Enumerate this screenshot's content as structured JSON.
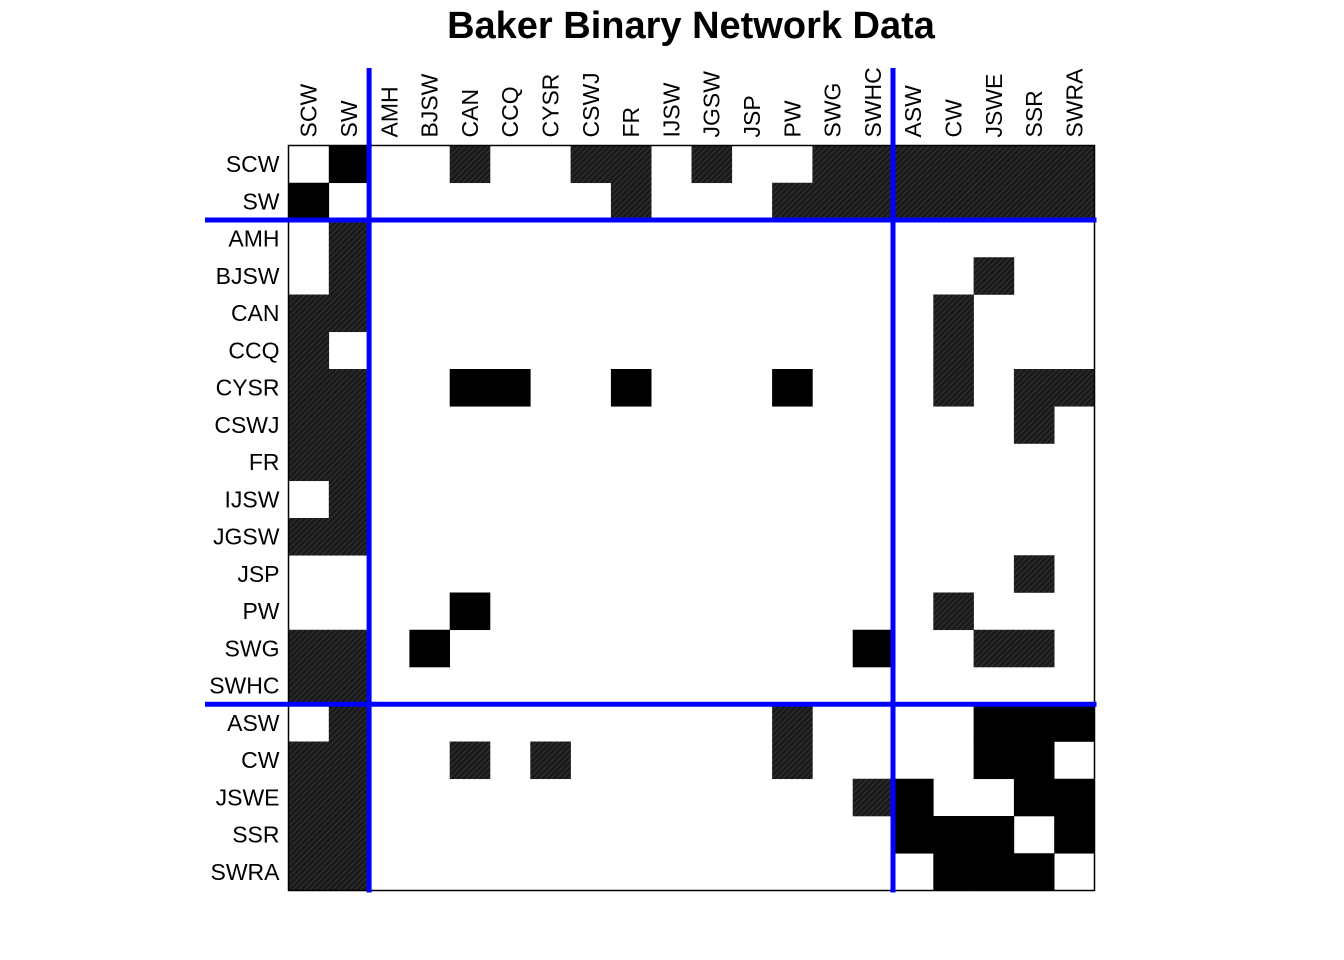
{
  "chart_data": {
    "type": "heatmap",
    "title": "Baker Binary Network Data",
    "labels": [
      "SCW",
      "SW",
      "AMH",
      "BJSW",
      "CAN",
      "CCQ",
      "CYSR",
      "CSWJ",
      "FR",
      "IJSW",
      "JGSW",
      "JSP",
      "PW",
      "SWG",
      "SWHC",
      "ASW",
      "CW",
      "JSWE",
      "SSR",
      "SWRA"
    ],
    "blocks": [
      {
        "start": 0,
        "end": 1
      },
      {
        "start": 2,
        "end": 14
      },
      {
        "start": 15,
        "end": 19
      }
    ],
    "divider_color": "#0000ff",
    "cell_color_solid": "#000000",
    "cell_color_hatched": "#1a1a1a",
    "matrix": [
      [
        0,
        1,
        0,
        0,
        1,
        0,
        0,
        1,
        1,
        0,
        1,
        0,
        0,
        1,
        1,
        1,
        1,
        1,
        1,
        1
      ],
      [
        1,
        0,
        0,
        0,
        0,
        0,
        0,
        0,
        1,
        0,
        0,
        0,
        1,
        1,
        1,
        1,
        1,
        1,
        1,
        1
      ],
      [
        0,
        1,
        0,
        0,
        0,
        0,
        0,
        0,
        0,
        0,
        0,
        0,
        0,
        0,
        0,
        0,
        0,
        0,
        0,
        0
      ],
      [
        0,
        1,
        0,
        0,
        0,
        0,
        0,
        0,
        0,
        0,
        0,
        0,
        0,
        0,
        0,
        0,
        0,
        1,
        0,
        0
      ],
      [
        1,
        1,
        0,
        0,
        0,
        0,
        0,
        0,
        0,
        0,
        0,
        0,
        0,
        0,
        0,
        0,
        1,
        0,
        0,
        0
      ],
      [
        1,
        0,
        0,
        0,
        0,
        0,
        0,
        0,
        0,
        0,
        0,
        0,
        0,
        0,
        0,
        0,
        1,
        0,
        0,
        0
      ],
      [
        1,
        1,
        0,
        0,
        1,
        1,
        0,
        0,
        1,
        0,
        0,
        0,
        1,
        0,
        0,
        0,
        1,
        0,
        1,
        1
      ],
      [
        1,
        1,
        0,
        0,
        0,
        0,
        0,
        0,
        0,
        0,
        0,
        0,
        0,
        0,
        0,
        0,
        0,
        0,
        1,
        0
      ],
      [
        1,
        1,
        0,
        0,
        0,
        0,
        0,
        0,
        0,
        0,
        0,
        0,
        0,
        0,
        0,
        0,
        0,
        0,
        0,
        0
      ],
      [
        0,
        1,
        0,
        0,
        0,
        0,
        0,
        0,
        0,
        0,
        0,
        0,
        0,
        0,
        0,
        0,
        0,
        0,
        0,
        0
      ],
      [
        1,
        1,
        0,
        0,
        0,
        0,
        0,
        0,
        0,
        0,
        0,
        0,
        0,
        0,
        0,
        0,
        0,
        0,
        0,
        0
      ],
      [
        0,
        0,
        0,
        0,
        0,
        0,
        0,
        0,
        0,
        0,
        0,
        0,
        0,
        0,
        0,
        0,
        0,
        0,
        1,
        0
      ],
      [
        0,
        0,
        0,
        0,
        1,
        0,
        0,
        0,
        0,
        0,
        0,
        0,
        0,
        0,
        0,
        0,
        1,
        0,
        0,
        0
      ],
      [
        1,
        1,
        0,
        1,
        0,
        0,
        0,
        0,
        0,
        0,
        0,
        0,
        0,
        0,
        1,
        0,
        0,
        1,
        1,
        0
      ],
      [
        1,
        1,
        0,
        0,
        0,
        0,
        0,
        0,
        0,
        0,
        0,
        0,
        0,
        0,
        0,
        0,
        0,
        0,
        0,
        0
      ],
      [
        0,
        1,
        0,
        0,
        0,
        0,
        0,
        0,
        0,
        0,
        0,
        0,
        1,
        0,
        0,
        0,
        0,
        1,
        1,
        1
      ],
      [
        1,
        1,
        0,
        0,
        1,
        0,
        1,
        0,
        0,
        0,
        0,
        0,
        1,
        0,
        0,
        0,
        0,
        1,
        1,
        0
      ],
      [
        1,
        1,
        0,
        0,
        0,
        0,
        0,
        0,
        0,
        0,
        0,
        0,
        0,
        0,
        1,
        1,
        0,
        0,
        1,
        1
      ],
      [
        1,
        1,
        0,
        0,
        0,
        0,
        0,
        0,
        0,
        0,
        0,
        0,
        0,
        0,
        0,
        1,
        1,
        1,
        0,
        1
      ],
      [
        1,
        1,
        0,
        0,
        0,
        0,
        0,
        0,
        0,
        0,
        0,
        0,
        0,
        0,
        0,
        0,
        1,
        1,
        1,
        0
      ]
    ]
  }
}
